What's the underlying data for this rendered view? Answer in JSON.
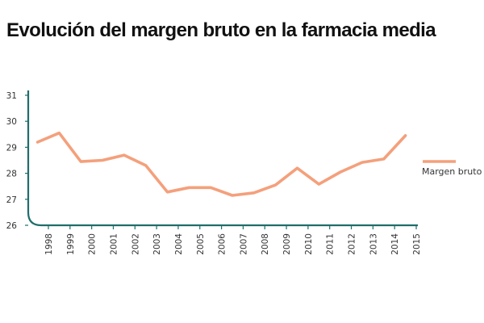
{
  "chart_data": {
    "type": "line",
    "title": "Evolución del margen bruto en la farmacia media",
    "xlabel": "",
    "ylabel": "",
    "ylim": [
      26,
      31
    ],
    "y_ticks": [
      "26",
      "27",
      "28",
      "29",
      "30",
      "31"
    ],
    "x_ticks": [
      "1998",
      "1999",
      "2000",
      "2001",
      "2002",
      "2003",
      "2004",
      "2005",
      "2006",
      "2007",
      "2008",
      "2009",
      "2010",
      "2011",
      "2012",
      "2013",
      "2014",
      "2015"
    ],
    "series": [
      {
        "name": "Margen bruto",
        "color": "#f4a07c",
        "points": [
          {
            "x": 1997.5,
            "y": 29.2
          },
          {
            "x": 1998.5,
            "y": 29.55
          },
          {
            "x": 1999.5,
            "y": 28.45
          },
          {
            "x": 2000.5,
            "y": 28.5
          },
          {
            "x": 2001.5,
            "y": 28.7
          },
          {
            "x": 2002.5,
            "y": 28.3
          },
          {
            "x": 2003.5,
            "y": 27.28
          },
          {
            "x": 2004.5,
            "y": 27.45
          },
          {
            "x": 2005.5,
            "y": 27.45
          },
          {
            "x": 2006.5,
            "y": 27.15
          },
          {
            "x": 2007.5,
            "y": 27.25
          },
          {
            "x": 2008.5,
            "y": 27.55
          },
          {
            "x": 2009.5,
            "y": 28.2
          },
          {
            "x": 2010.5,
            "y": 27.58
          },
          {
            "x": 2011.5,
            "y": 28.05
          },
          {
            "x": 2012.5,
            "y": 28.42
          },
          {
            "x": 2013.5,
            "y": 28.55
          },
          {
            "x": 2014.5,
            "y": 29.45
          }
        ]
      }
    ],
    "legend_position": "right",
    "grid": false,
    "axis_color": "#1f6e6a"
  }
}
